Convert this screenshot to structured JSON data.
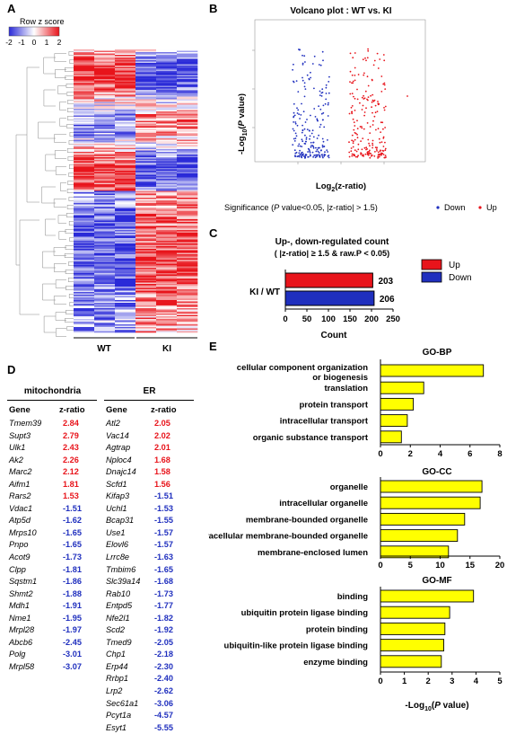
{
  "panel_letters": {
    "a": "A",
    "b": "B",
    "c": "C",
    "d": "D",
    "e": "E"
  },
  "panelA": {
    "legend_title": "Row z score",
    "legend_ticks": [
      "-2",
      "-1",
      "0",
      "1",
      "2"
    ],
    "group_labels": [
      "WT",
      "KI"
    ]
  },
  "panelB": {
    "title": "Volcano plot : WT vs. KI",
    "ylabel_prefix": "-Log",
    "ylabel_sub": "10",
    "ylabel_mid": "(",
    "ylabel_p": "P",
    "ylabel_suffix": " value)",
    "xlabel_prefix": "Log",
    "xlabel_sub": "2",
    "xlabel_suffix": "(z-ratio)",
    "sig_prefix": "Significance (",
    "sig_p": "P",
    "sig_suffix": " value<0.05, |z-ratio| > 1.5)",
    "legend_down": "Down",
    "legend_up": "Up",
    "colors": {
      "down": "#1f2fbe",
      "up": "#e8141b"
    }
  },
  "chart_data": [
    {
      "type": "bar",
      "title": "Up-, down-regulated count",
      "subtitle": "( |z-ratio| ≥ 1.5 & raw.P < 0.05)",
      "categories": [
        "KI / WT"
      ],
      "series": [
        {
          "name": "Up",
          "values": [
            203
          ],
          "color": "#e8141b"
        },
        {
          "name": "Down",
          "values": [
            206
          ],
          "color": "#1f2fbe"
        }
      ],
      "xlabel": "Count",
      "xlim": [
        0,
        250
      ],
      "xticks": [
        "0",
        "50",
        "100",
        "150",
        "200",
        "250"
      ],
      "legend": "right"
    },
    {
      "type": "bar",
      "title": "GO-BP",
      "categories": [
        "cellular component organization or biogenesis",
        "translation",
        "protein transport",
        "intracellular transport",
        "organic substance transport"
      ],
      "values": [
        6.9,
        2.9,
        2.2,
        1.8,
        1.4
      ],
      "xlim": [
        0,
        8
      ],
      "xticks": [
        "0",
        "2",
        "4",
        "6",
        "8"
      ]
    },
    {
      "type": "bar",
      "title": "GO-CC",
      "categories": [
        "organelle",
        "intracellular organelle",
        "membrane-bounded organelle",
        "intracellular membrane-bounded organelle",
        "membrane-enclosed lumen"
      ],
      "values": [
        17.0,
        16.7,
        14.1,
        12.9,
        11.4
      ],
      "xlim": [
        0,
        20
      ],
      "xticks": [
        "0",
        "5",
        "10",
        "15",
        "20"
      ]
    },
    {
      "type": "bar",
      "title": "GO-MF",
      "categories": [
        "binding",
        "ubiquitin protein ligase binding",
        "protein binding",
        "ubiquitin-like protein ligase binding",
        "enzyme binding"
      ],
      "values": [
        3.9,
        2.9,
        2.7,
        2.65,
        2.55
      ],
      "xlim": [
        0,
        5
      ],
      "xticks": [
        "0",
        "1",
        "2",
        "3",
        "4",
        "5"
      ]
    }
  ],
  "panelE": {
    "xlabel_prefix": "-Log",
    "xlabel_sub": "10",
    "xlabel_mid": "(",
    "xlabel_p": "P",
    "xlabel_suffix": " value)",
    "bar_color": "#ffff00",
    "bp_label_1": "cellular component organization",
    "bp_label_2": "or biogenesis"
  },
  "panelD": {
    "mito": {
      "title": "mitochondria",
      "col_gene": "Gene",
      "col_z": "z-ratio",
      "rows": [
        [
          "Tmem39",
          "2.84"
        ],
        [
          "Supt3",
          "2.79"
        ],
        [
          "Ulk1",
          "2.43"
        ],
        [
          "Ak2",
          "2.26"
        ],
        [
          "Marc2",
          "2.12"
        ],
        [
          "Aifm1",
          "1.81"
        ],
        [
          "Rars2",
          "1.53"
        ],
        [
          "Vdac1",
          "-1.51"
        ],
        [
          "Atp5d",
          "-1.62"
        ],
        [
          "Mrps10",
          "-1.65"
        ],
        [
          "Pnpo",
          "-1.65"
        ],
        [
          "Acot9",
          "-1.73"
        ],
        [
          "Clpp",
          "-1.81"
        ],
        [
          "Sqstm1",
          "-1.86"
        ],
        [
          "Shmt2",
          "-1.88"
        ],
        [
          "Mdh1",
          "-1.91"
        ],
        [
          "Nme1",
          "-1.95"
        ],
        [
          "Mrpl28",
          "-1.97"
        ],
        [
          "Abcb6",
          "-2.45"
        ],
        [
          "Polg",
          "-3.01"
        ],
        [
          "Mrpl58",
          "-3.07"
        ]
      ]
    },
    "er": {
      "title": "ER",
      "col_gene": "Gene",
      "col_z": "z-ratio",
      "rows": [
        [
          "Atl2",
          "2.05"
        ],
        [
          "Vac14",
          "2.02"
        ],
        [
          "Agtrap",
          "2.01"
        ],
        [
          "Nploc4",
          "1.68"
        ],
        [
          "Dnajc14",
          "1.58"
        ],
        [
          "Scfd1",
          "1.56"
        ],
        [
          "Kifap3",
          "-1.51"
        ],
        [
          "Uchl1",
          "-1.53"
        ],
        [
          "Bcap31",
          "-1.55"
        ],
        [
          "Use1",
          "-1.57"
        ],
        [
          "Elovl6",
          "-1.57"
        ],
        [
          "Lrrc8e",
          "-1.63"
        ],
        [
          "Tmbim6",
          "-1.65"
        ],
        [
          "Slc39a14",
          "-1.68"
        ],
        [
          "Rab10",
          "-1.73"
        ],
        [
          "Entpd5",
          "-1.77"
        ],
        [
          "Nfe2l1",
          "-1.82"
        ],
        [
          "Scd2",
          "-1.92"
        ],
        [
          "Tmed9",
          "-2.05"
        ],
        [
          "Chp1",
          "-2.18"
        ],
        [
          "Erp44",
          "-2.30"
        ],
        [
          "Rrbp1",
          "-2.40"
        ],
        [
          "Lrp2",
          "-2.62"
        ],
        [
          "Sec61a1",
          "-3.06"
        ],
        [
          "Pcyt1a",
          "-4.57"
        ],
        [
          "Esyt1",
          "-5.55"
        ]
      ]
    }
  }
}
